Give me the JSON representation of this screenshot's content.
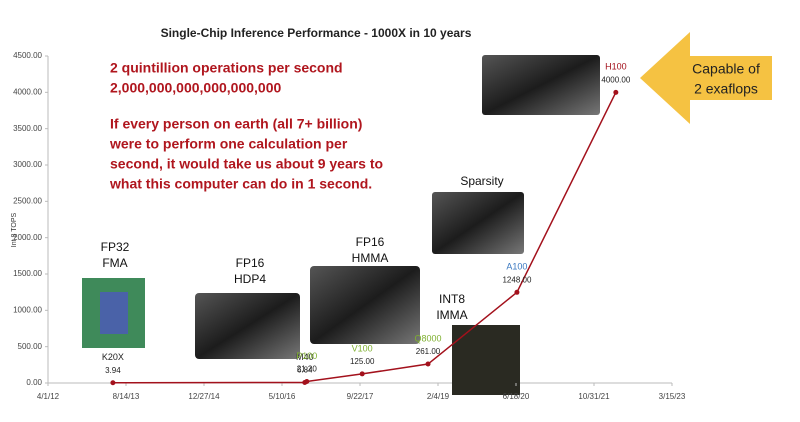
{
  "chart_data": {
    "type": "line",
    "title": "Single-Chip Inference Performance - 1000X in 10 years",
    "y_label": "Int 8 TOPS",
    "x": [
      "5/22/13",
      "10/3/16",
      "10/16/16",
      "10/6/17",
      "12/2/18",
      "6/24/20",
      "3/20/22"
    ],
    "series": [
      {
        "name": "Int 8 TOPS",
        "color": "#a3111c",
        "values": [
          3.94,
          6.84,
          21.2,
          125,
          261,
          1248,
          4000
        ],
        "value_labels": [
          "3.94",
          "6.84",
          "21.20",
          "125.00",
          "261.00",
          "1248.00",
          "4000.00"
        ]
      }
    ],
    "point_labels": [
      "K20X",
      "M40",
      "P100",
      "V100",
      "Q8000",
      "A100",
      "H100"
    ],
    "point_label_colors": [
      "#222222",
      "#222222",
      "#7fb030",
      "#7fb030",
      "#7fb030",
      "#3a78c0",
      "#a3111c"
    ],
    "xlim": [
      "4/1/12",
      "3/15/23"
    ],
    "xticks": [
      "4/1/12",
      "8/14/13",
      "12/27/14",
      "5/10/16",
      "9/22/17",
      "2/4/19",
      "6/18/20",
      "10/31/21",
      "3/15/23"
    ],
    "ylim": [
      0,
      4500
    ],
    "yticks": [
      {
        "value": 0,
        "label": "0.00"
      },
      {
        "value": 500,
        "label": "500.00"
      },
      {
        "value": 1000,
        "label": "1000.00"
      },
      {
        "value": 1500,
        "label": "1500.00"
      },
      {
        "value": 2000,
        "label": "2000.00"
      },
      {
        "value": 2500,
        "label": "2500.00"
      },
      {
        "value": 3000,
        "label": "3000.00"
      },
      {
        "value": 3500,
        "label": "3500.00"
      },
      {
        "value": 4000,
        "label": "4000.00"
      },
      {
        "value": 4500,
        "label": "4500.00"
      }
    ],
    "annotations": {
      "facts": [
        "2 quintillion operations per second",
        "2,000,000,000,000,000,000",
        "If every person on earth (all 7+ billion)",
        "were to perform one calculation per",
        "second, it would take us about 9 years to",
        "what this computer can do in 1 second."
      ],
      "chips": [
        [
          "FP32",
          "FMA"
        ],
        [
          "FP16",
          "HDP4"
        ],
        [
          "FP16",
          "HMMA"
        ],
        [
          "INT8",
          "IMMA"
        ],
        [
          "Sparsity"
        ]
      ],
      "callout": [
        "Capable of",
        "2 exaflops"
      ]
    }
  }
}
